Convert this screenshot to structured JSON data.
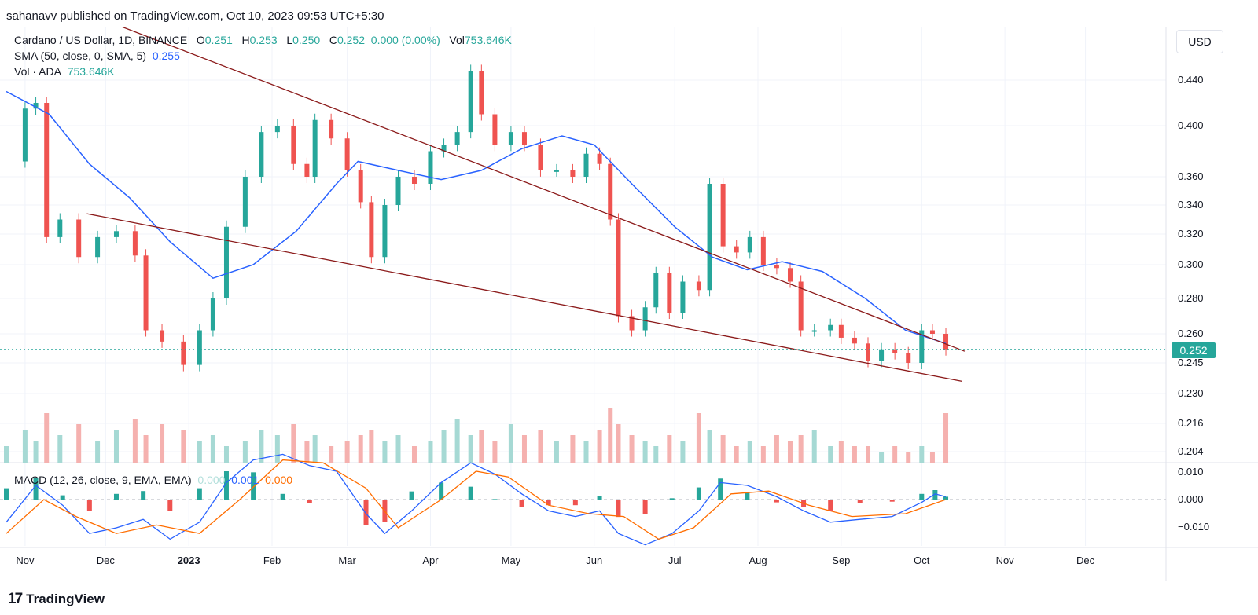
{
  "publisher_line": "sahanavv published on TradingView.com, Oct 10, 2023 09:53 UTC+5:30",
  "legend": {
    "symbol": "Cardano / US Dollar, 1D, BINANCE",
    "o_label": "O",
    "o_value": "0.251",
    "h_label": "H",
    "h_value": "0.253",
    "l_label": "L",
    "l_value": "0.250",
    "c_label": "C",
    "c_value": "0.252",
    "change": "0.000 (0.00%)",
    "vol_label": "Vol",
    "vol_value": "753.646K",
    "sma_label": "SMA (50, close, 0, SMA, 5)",
    "sma_value": "0.255",
    "volume_label": "Vol · ADA",
    "volume_value": "753.646K",
    "macd_label": "MACD (12, 26, close, 9, EMA, EMA)",
    "macd_hist": "0.000",
    "macd_line": "0.001",
    "macd_signal": "0.000"
  },
  "currency_button": "USD",
  "last_price": "0.252",
  "brand": "TradingView",
  "brand_mark": "17",
  "colors": {
    "up": "#26a69a",
    "down": "#ef5350",
    "sma": "#2962ff",
    "trend": "#8b1a1a",
    "signal": "#ff6d00",
    "macd": "#2962ff"
  },
  "chart_data": {
    "type": "candlestick",
    "title": "Cardano / US Dollar, 1D, BINANCE",
    "price_ticks": [
      "0.440",
      "0.400",
      "0.360",
      "0.340",
      "0.320",
      "0.300",
      "0.280",
      "0.260",
      "0.245",
      "0.230",
      "0.216",
      "0.204"
    ],
    "macd_ticks": [
      "0.010",
      "0.000",
      "−0.010"
    ],
    "x_ticks": [
      "Nov",
      "Dec",
      "2023",
      "Feb",
      "Mar",
      "Apr",
      "May",
      "Jun",
      "Jul",
      "Aug",
      "Sep",
      "Oct",
      "Nov",
      "Dec"
    ],
    "price_series": [
      [
        "2022-10-25",
        0.372
      ],
      [
        "2022-11-01",
        0.415
      ],
      [
        "2022-11-05",
        0.42
      ],
      [
        "2022-11-09",
        0.318
      ],
      [
        "2022-11-14",
        0.33
      ],
      [
        "2022-11-21",
        0.305
      ],
      [
        "2022-11-28",
        0.318
      ],
      [
        "2022-12-05",
        0.322
      ],
      [
        "2022-12-12",
        0.306
      ],
      [
        "2022-12-16",
        0.262
      ],
      [
        "2022-12-22",
        0.256
      ],
      [
        "2022-12-30",
        0.244
      ],
      [
        "2023-01-05",
        0.262
      ],
      [
        "2023-01-10",
        0.28
      ],
      [
        "2023-01-15",
        0.325
      ],
      [
        "2023-01-22",
        0.36
      ],
      [
        "2023-01-28",
        0.395
      ],
      [
        "2023-02-03",
        0.4
      ],
      [
        "2023-02-09",
        0.37
      ],
      [
        "2023-02-14",
        0.36
      ],
      [
        "2023-02-17",
        0.405
      ],
      [
        "2023-02-23",
        0.39
      ],
      [
        "2023-03-01",
        0.365
      ],
      [
        "2023-03-06",
        0.342
      ],
      [
        "2023-03-10",
        0.305
      ],
      [
        "2023-03-15",
        0.34
      ],
      [
        "2023-03-20",
        0.36
      ],
      [
        "2023-03-26",
        0.355
      ],
      [
        "2023-04-01",
        0.38
      ],
      [
        "2023-04-06",
        0.385
      ],
      [
        "2023-04-11",
        0.395
      ],
      [
        "2023-04-16",
        0.448
      ],
      [
        "2023-04-20",
        0.41
      ],
      [
        "2023-04-25",
        0.385
      ],
      [
        "2023-05-01",
        0.395
      ],
      [
        "2023-05-06",
        0.385
      ],
      [
        "2023-05-12",
        0.365
      ],
      [
        "2023-05-18",
        0.365
      ],
      [
        "2023-05-24",
        0.36
      ],
      [
        "2023-05-29",
        0.378
      ],
      [
        "2023-06-03",
        0.37
      ],
      [
        "2023-06-07",
        0.33
      ],
      [
        "2023-06-10",
        0.27
      ],
      [
        "2023-06-15",
        0.262
      ],
      [
        "2023-06-20",
        0.275
      ],
      [
        "2023-06-24",
        0.295
      ],
      [
        "2023-06-29",
        0.272
      ],
      [
        "2023-07-04",
        0.29
      ],
      [
        "2023-07-10",
        0.285
      ],
      [
        "2023-07-14",
        0.355
      ],
      [
        "2023-07-19",
        0.312
      ],
      [
        "2023-07-24",
        0.308
      ],
      [
        "2023-07-29",
        0.318
      ],
      [
        "2023-08-03",
        0.3
      ],
      [
        "2023-08-08",
        0.298
      ],
      [
        "2023-08-13",
        0.29
      ],
      [
        "2023-08-17",
        0.262
      ],
      [
        "2023-08-22",
        0.262
      ],
      [
        "2023-08-28",
        0.265
      ],
      [
        "2023-09-01",
        0.258
      ],
      [
        "2023-09-06",
        0.255
      ],
      [
        "2023-09-11",
        0.246
      ],
      [
        "2023-09-16",
        0.252
      ],
      [
        "2023-09-21",
        0.25
      ],
      [
        "2023-09-26",
        0.245
      ],
      [
        "2023-10-01",
        0.262
      ],
      [
        "2023-10-05",
        0.26
      ],
      [
        "2023-10-10",
        0.252
      ]
    ],
    "sma_series": [
      [
        "2022-10-25",
        0.43
      ],
      [
        "2022-11-10",
        0.41
      ],
      [
        "2022-11-25",
        0.37
      ],
      [
        "2022-12-10",
        0.345
      ],
      [
        "2022-12-25",
        0.315
      ],
      [
        "2023-01-10",
        0.292
      ],
      [
        "2023-01-25",
        0.3
      ],
      [
        "2023-02-10",
        0.322
      ],
      [
        "2023-02-25",
        0.355
      ],
      [
        "2023-03-05",
        0.372
      ],
      [
        "2023-03-20",
        0.365
      ],
      [
        "2023-04-05",
        0.358
      ],
      [
        "2023-04-20",
        0.365
      ],
      [
        "2023-05-05",
        0.382
      ],
      [
        "2023-05-20",
        0.392
      ],
      [
        "2023-06-01",
        0.385
      ],
      [
        "2023-06-15",
        0.355
      ],
      [
        "2023-07-01",
        0.325
      ],
      [
        "2023-07-15",
        0.305
      ],
      [
        "2023-07-28",
        0.297
      ],
      [
        "2023-08-10",
        0.302
      ],
      [
        "2023-08-25",
        0.296
      ],
      [
        "2023-09-10",
        0.28
      ],
      [
        "2023-09-25",
        0.262
      ],
      [
        "2023-10-10",
        0.255
      ]
    ],
    "volume_series": [
      0.3,
      0.6,
      0.4,
      0.9,
      0.5,
      0.7,
      0.4,
      0.6,
      0.8,
      0.5,
      0.7,
      0.6,
      0.4,
      0.5,
      0.3,
      0.4,
      0.6,
      0.5,
      0.7,
      0.4,
      0.5,
      0.3,
      0.4,
      0.5,
      0.6,
      0.4,
      0.5,
      0.3,
      0.4,
      0.6,
      0.8,
      0.5,
      0.6,
      0.4,
      0.7,
      0.5,
      0.6,
      0.4,
      0.5,
      0.4,
      0.6,
      1.0,
      0.7,
      0.5,
      0.4,
      0.3,
      0.5,
      0.4,
      0.9,
      0.6,
      0.5,
      0.3,
      0.4,
      0.3,
      0.5,
      0.4,
      0.5,
      0.6,
      0.3,
      0.4,
      0.3,
      0.3,
      0.2,
      0.3,
      0.2,
      0.3,
      0.2,
      0.9
    ],
    "macd_series": [
      [
        "2022-10-25",
        -0.008
      ],
      [
        "2022-11-05",
        0.005
      ],
      [
        "2022-11-15",
        -0.002
      ],
      [
        "2022-11-25",
        -0.012
      ],
      [
        "2022-12-05",
        -0.01
      ],
      [
        "2022-12-15",
        -0.007
      ],
      [
        "2022-12-25",
        -0.014
      ],
      [
        "2023-01-05",
        -0.008
      ],
      [
        "2023-01-15",
        0.006
      ],
      [
        "2023-01-25",
        0.014
      ],
      [
        "2023-02-05",
        0.016
      ],
      [
        "2023-02-15",
        0.012
      ],
      [
        "2023-02-25",
        0.01
      ],
      [
        "2023-03-08",
        -0.005
      ],
      [
        "2023-03-15",
        -0.012
      ],
      [
        "2023-03-25",
        -0.004
      ],
      [
        "2023-04-05",
        0.006
      ],
      [
        "2023-04-16",
        0.013
      ],
      [
        "2023-04-25",
        0.009
      ],
      [
        "2023-05-05",
        0.002
      ],
      [
        "2023-05-15",
        -0.004
      ],
      [
        "2023-05-25",
        -0.006
      ],
      [
        "2023-06-03",
        -0.004
      ],
      [
        "2023-06-10",
        -0.012
      ],
      [
        "2023-06-20",
        -0.016
      ],
      [
        "2023-06-30",
        -0.012
      ],
      [
        "2023-07-10",
        -0.004
      ],
      [
        "2023-07-18",
        0.006
      ],
      [
        "2023-07-28",
        0.005
      ],
      [
        "2023-08-08",
        0.001
      ],
      [
        "2023-08-18",
        -0.004
      ],
      [
        "2023-08-28",
        -0.008
      ],
      [
        "2023-09-08",
        -0.007
      ],
      [
        "2023-09-20",
        -0.006
      ],
      [
        "2023-10-01",
        -0.001
      ],
      [
        "2023-10-06",
        0.002
      ],
      [
        "2023-10-10",
        0.001
      ]
    ],
    "signal_series": [
      [
        "2022-10-25",
        -0.012
      ],
      [
        "2022-11-08",
        0.0
      ],
      [
        "2022-11-20",
        -0.006
      ],
      [
        "2022-12-05",
        -0.012
      ],
      [
        "2022-12-20",
        -0.009
      ],
      [
        "2023-01-05",
        -0.012
      ],
      [
        "2023-01-20",
        0.0
      ],
      [
        "2023-02-05",
        0.014
      ],
      [
        "2023-02-20",
        0.013
      ],
      [
        "2023-03-08",
        0.004
      ],
      [
        "2023-03-20",
        -0.01
      ],
      [
        "2023-04-05",
        0.0
      ],
      [
        "2023-04-18",
        0.01
      ],
      [
        "2023-04-30",
        0.008
      ],
      [
        "2023-05-15",
        -0.002
      ],
      [
        "2023-05-30",
        -0.005
      ],
      [
        "2023-06-12",
        -0.006
      ],
      [
        "2023-06-25",
        -0.014
      ],
      [
        "2023-07-08",
        -0.01
      ],
      [
        "2023-07-22",
        0.002
      ],
      [
        "2023-08-05",
        0.003
      ],
      [
        "2023-08-20",
        -0.002
      ],
      [
        "2023-09-05",
        -0.006
      ],
      [
        "2023-09-25",
        -0.005
      ],
      [
        "2023-10-10",
        0.0
      ]
    ],
    "trendlines": [
      {
        "name": "upper",
        "from": [
          "2022-11-17",
          0.505
        ],
        "to": [
          "2023-10-17",
          0.251
        ]
      },
      {
        "name": "lower",
        "from": [
          "2022-11-24",
          0.334
        ],
        "to": [
          "2023-10-16",
          0.236
        ]
      }
    ]
  }
}
